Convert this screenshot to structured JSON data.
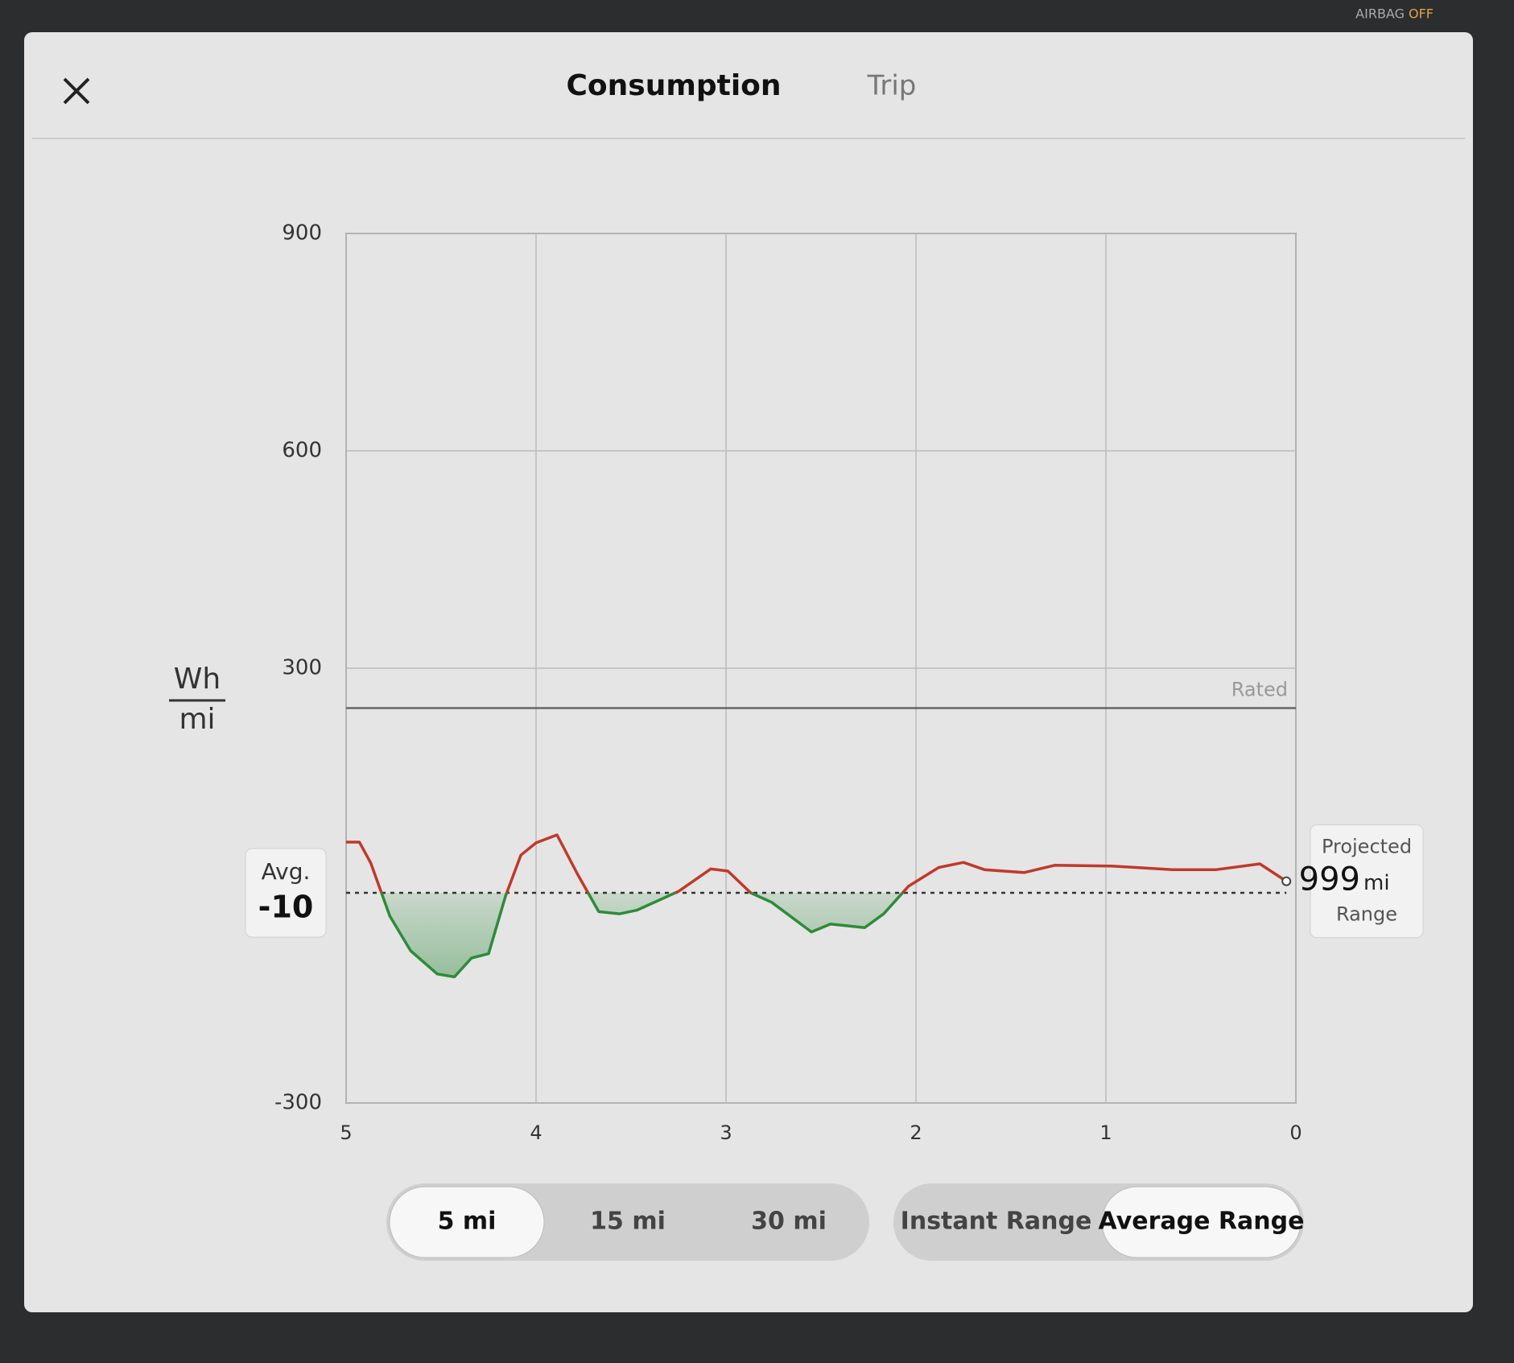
{
  "status": {
    "airbag": "AIRBAG",
    "airbag_state": "OFF"
  },
  "header": {
    "tabs": [
      "Consumption",
      "Trip"
    ],
    "active_tab": 0
  },
  "chart_data": {
    "type": "line",
    "y_unit": {
      "numerator": "Wh",
      "denominator": "mi"
    },
    "xlim": [
      5,
      0
    ],
    "ylim": [
      -300,
      900
    ],
    "xticks": [
      5,
      4,
      3,
      2,
      1,
      0
    ],
    "yticks": [
      -300,
      300,
      600,
      900
    ],
    "grid": true,
    "x": [
      5.0,
      4.93,
      4.87,
      4.77,
      4.66,
      4.52,
      4.43,
      4.34,
      4.25,
      4.16,
      4.08,
      4.0,
      3.89,
      3.78,
      3.67,
      3.56,
      3.47,
      3.25,
      3.08,
      2.99,
      2.87,
      2.76,
      2.55,
      2.45,
      2.27,
      2.17,
      2.04,
      1.88,
      1.75,
      1.64,
      1.43,
      1.27,
      0.97,
      0.65,
      0.42,
      0.19,
      0.05
    ],
    "values": [
      60,
      60,
      31,
      -42,
      -90,
      -122,
      -126,
      -100,
      -94,
      -14,
      42,
      59,
      70,
      15,
      -36,
      -39,
      -34,
      -8,
      23,
      20,
      -10,
      -23,
      -64,
      -53,
      -58,
      -39,
      -1,
      25,
      32,
      22,
      18,
      28,
      27,
      22,
      22,
      30,
      6
    ],
    "color_above": "#c0392b",
    "color_below": "#2e8b3a",
    "average": {
      "label": "Avg.",
      "value": -10,
      "color": "#333333"
    },
    "rated": {
      "label": "Rated",
      "value": 245,
      "color": "#666666"
    },
    "projected": {
      "label_top": "Projected",
      "value": 999,
      "unit": "mi",
      "label_bottom": "Range"
    }
  },
  "distance_buttons": {
    "options": [
      "5 mi",
      "15 mi",
      "30 mi"
    ],
    "active": 0
  },
  "range_buttons": {
    "options": [
      "Instant Range",
      "Average Range"
    ],
    "active": 1
  }
}
